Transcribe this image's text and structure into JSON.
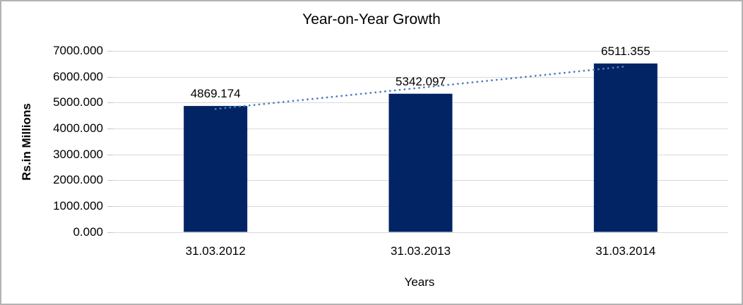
{
  "window": {
    "background": "#FFFFFF",
    "border_color": "#B3B3B3"
  },
  "chart_data": {
    "type": "bar",
    "title": "Year-on-Year Growth",
    "xlabel": "Years",
    "ylabel": "Rs.in Millions",
    "categories": [
      "31.03.2012",
      "31.03.2013",
      "31.03.2014"
    ],
    "values": [
      4869.174,
      5342.097,
      6511.355
    ],
    "data_labels": [
      "4869.174",
      "5342.097",
      "6511.355"
    ],
    "ylim": [
      0,
      7000
    ],
    "ytick_labels": [
      "0.000",
      "1000.000",
      "2000.000",
      "3000.000",
      "4000.000",
      "5000.000",
      "6000.000",
      "7000.000"
    ],
    "grid": true,
    "legend": "none",
    "trendline": {
      "type": "linear",
      "style": "dotted"
    },
    "colors": {
      "bar": "#022465",
      "trendline": "#4F81BD",
      "gridline": "#D9D9D9",
      "tick": "#C6C6C6",
      "text": "#000000"
    }
  }
}
